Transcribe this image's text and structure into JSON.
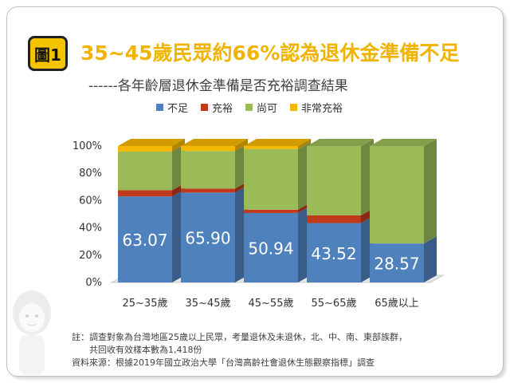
{
  "header": {
    "badge": "圖1",
    "title": "35~45歲民眾約66%認為退休金準備不足",
    "subtitle": "------各年齡層退休金準備是否充裕調查結果"
  },
  "chart_data": {
    "type": "bar",
    "stacked": true,
    "three_d": true,
    "categories": [
      "25~35歲",
      "35~45歲",
      "45~55歲",
      "55~65歲",
      "65歲以上"
    ],
    "series": [
      {
        "name": "不足",
        "color": "#4f81bd",
        "values": [
          63.07,
          65.9,
          50.94,
          43.52,
          28.57
        ]
      },
      {
        "name": "充裕",
        "color": "#c0391b",
        "values": [
          4.5,
          2.9,
          2.4,
          5.6,
          0
        ]
      },
      {
        "name": "尚可",
        "color": "#9bbb59",
        "values": [
          28.4,
          27.6,
          44.4,
          50.88,
          71.43
        ]
      },
      {
        "name": "非常充裕",
        "color": "#f5b800",
        "values": [
          4.03,
          3.6,
          2.26,
          0,
          0
        ]
      }
    ],
    "data_labels": [
      "63.07",
      "65.90",
      "50.94",
      "43.52",
      "28.57"
    ],
    "ytick_labels": [
      "0%",
      "20%",
      "40%",
      "60%",
      "80%",
      "100%"
    ],
    "ylim": [
      0,
      100
    ],
    "grid": false,
    "legend": "top"
  },
  "notes": {
    "line1": "註：調查對象為台灣地區25歲以上民眾，考量退休及未退休，北、中、南、東部族群，",
    "line2": "共回收有效樣本數為1,418份",
    "line3": "資料來源：根據2019年國立政治大學「台灣高齡社會退休生態觀察指標」調查"
  },
  "colors": {
    "badge": "#f5c400",
    "title": "#f0b400"
  }
}
